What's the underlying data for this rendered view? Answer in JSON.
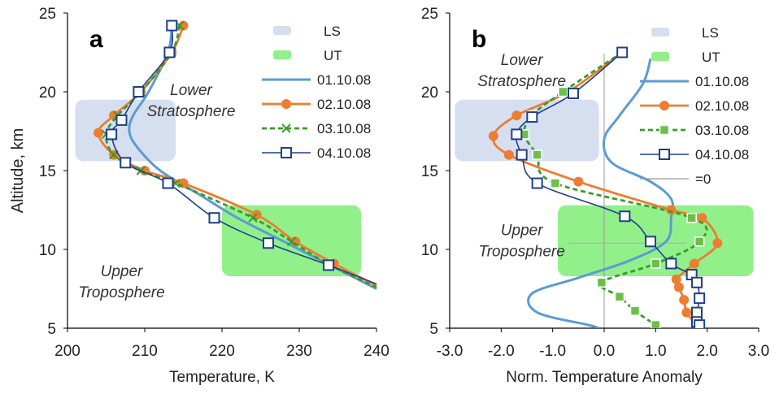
{
  "chart_data": [
    {
      "panel": "a",
      "type": "line",
      "xlabel": "Temperature, K",
      "ylabel": "Altitude, km",
      "xlim": [
        200,
        240
      ],
      "ylim": [
        5,
        25
      ],
      "xticks": [
        "200",
        "210",
        "220",
        "230",
        "240"
      ],
      "yticks": [
        "5",
        "10",
        "15",
        "20",
        "25"
      ],
      "regions": [
        {
          "name": "LS",
          "x": [
            201,
            214
          ],
          "y": [
            15.6,
            19.5
          ],
          "color": "#d6dff0"
        },
        {
          "name": "UT",
          "x": [
            220,
            238
          ],
          "y": [
            8.3,
            12.8
          ],
          "color": "#92f08a"
        }
      ],
      "annotations": [
        {
          "lines": [
            "Lower",
            "Stratosphere"
          ],
          "at": [
            216,
            19.8
          ]
        },
        {
          "lines": [
            "Upper",
            "Troposphere"
          ],
          "at": [
            207,
            8.3
          ]
        }
      ],
      "series": [
        {
          "name": "01.10.08",
          "color": "#5b9bd5",
          "marker": "none",
          "dash": "",
          "points": [
            [
              213.5,
              24
            ],
            [
              213,
              22.5
            ],
            [
              210.5,
              20
            ],
            [
              208.5,
              18.5
            ],
            [
              208,
              17.5
            ],
            [
              209,
              16.5
            ],
            [
              212,
              15
            ],
            [
              217,
              13.5
            ],
            [
              222,
              12
            ],
            [
              228,
              10.5
            ],
            [
              234,
              9
            ],
            [
              240,
              7.5
            ]
          ]
        },
        {
          "name": "02.10.08",
          "color": "#ed7d31",
          "marker": "circle",
          "dash": "",
          "points": [
            [
              215,
              24.2
            ],
            [
              213.5,
              22.5
            ],
            [
              209.5,
              20
            ],
            [
              206,
              18.5
            ],
            [
              204,
              17.4
            ],
            [
              206,
              16
            ],
            [
              210,
              15
            ],
            [
              215,
              14.2
            ],
            [
              224.5,
              12.2
            ],
            [
              229.5,
              10.5
            ],
            [
              234.5,
              9.1
            ],
            [
              240,
              7.7
            ]
          ]
        },
        {
          "name": "03.10.08",
          "color": "#3a9b2d",
          "marker": "x",
          "dash": "6,4",
          "points": [
            [
              214.5,
              24.2
            ],
            [
              213.5,
              22.5
            ],
            [
              209.5,
              20
            ],
            [
              206.5,
              18.5
            ],
            [
              205,
              17.3
            ],
            [
              206,
              16
            ],
            [
              209.5,
              15
            ],
            [
              214,
              14.2
            ],
            [
              224,
              12
            ],
            [
              229,
              10.5
            ],
            [
              234,
              9
            ],
            [
              240,
              7.6
            ]
          ]
        },
        {
          "name": "04.10.08",
          "color": "#1f3f8c",
          "marker": "square",
          "dash": "",
          "points": [
            [
              213.5,
              24.2
            ],
            [
              213.2,
              22.5
            ],
            [
              209.2,
              20
            ],
            [
              207,
              18.2
            ],
            [
              205.7,
              17.3
            ],
            [
              207.5,
              15.5
            ],
            [
              213,
              14.2
            ],
            [
              219,
              12
            ],
            [
              226,
              10.4
            ],
            [
              233.8,
              9
            ],
            [
              240,
              7.8
            ]
          ]
        }
      ],
      "legend": [
        {
          "label": "LS",
          "kind": "region",
          "color": "#d6dff0"
        },
        {
          "label": "UT",
          "kind": "region",
          "color": "#92f08a"
        },
        {
          "label": "01.10.08",
          "kind": "series",
          "series": 0
        },
        {
          "label": "02.10.08",
          "kind": "series",
          "series": 1
        },
        {
          "label": "03.10.08",
          "kind": "series",
          "series": 2
        },
        {
          "label": "04.10.08",
          "kind": "series",
          "series": 3
        }
      ]
    },
    {
      "panel": "b",
      "type": "line",
      "xlabel": "Norm. Temperature Anomaly",
      "ylabel": "",
      "xlim": [
        -3,
        3
      ],
      "ylim": [
        5,
        25
      ],
      "xticks": [
        "-3.0",
        "-2.0",
        "-1.0",
        "0.0",
        "1.0",
        "2.0",
        "3.0"
      ],
      "yticks": [
        "5",
        "10",
        "15",
        "20",
        "25"
      ],
      "regions": [
        {
          "name": "LS",
          "x": [
            -2.9,
            -0.1
          ],
          "y": [
            15.6,
            19.5
          ],
          "color": "#d6dff0"
        },
        {
          "name": "UT",
          "x": [
            -0.9,
            2.9
          ],
          "y": [
            8.3,
            12.8
          ],
          "color": "#92f08a"
        }
      ],
      "annotations": [
        {
          "lines": [
            "Lower",
            "Stratosphere"
          ],
          "at": [
            -1.6,
            21.7
          ]
        },
        {
          "lines": [
            "Upper",
            "Troposphere"
          ],
          "at": [
            -1.6,
            10.9
          ]
        }
      ],
      "series": [
        {
          "name": "01.10.08",
          "color": "#5b9bd5",
          "marker": "none",
          "dash": "",
          "points": [
            [
              0.9,
              22.1
            ],
            [
              0.75,
              20.5
            ],
            [
              0.3,
              18.5
            ],
            [
              0.0,
              17
            ],
            [
              0.15,
              15.5
            ],
            [
              0.9,
              14.3
            ],
            [
              1.3,
              13.2
            ],
            [
              1.3,
              12
            ],
            [
              1.2,
              10.5
            ],
            [
              0.5,
              9.3
            ],
            [
              -0.5,
              8.2
            ],
            [
              -1.4,
              7.2
            ],
            [
              -1.3,
              6
            ],
            [
              -0.3,
              5.2
            ],
            [
              -0.1,
              5
            ]
          ]
        },
        {
          "name": "02.10.08",
          "color": "#ed7d31",
          "marker": "circle",
          "dash": "",
          "points": [
            [
              0.35,
              22.5
            ],
            [
              -0.7,
              20
            ],
            [
              -1.7,
              18.5
            ],
            [
              -2.15,
              17.2
            ],
            [
              -1.85,
              16
            ],
            [
              -0.5,
              14.3
            ],
            [
              1.3,
              12.5
            ],
            [
              1.9,
              12
            ],
            [
              2.2,
              10.4
            ],
            [
              1.75,
              9.1
            ],
            [
              1.4,
              8.1
            ],
            [
              1.45,
              7.6
            ],
            [
              1.55,
              6.8
            ],
            [
              1.6,
              6
            ],
            [
              1.8,
              5.2
            ]
          ]
        },
        {
          "name": "03.10.08",
          "color": "#3a9b2d",
          "marker": "square-green",
          "dash": "6,4",
          "points": [
            [
              0.35,
              22.5
            ],
            [
              -0.8,
              20
            ],
            [
              -1.4,
              18.5
            ],
            [
              -1.55,
              17.3
            ],
            [
              -1.3,
              16
            ],
            [
              -0.95,
              14.2
            ],
            [
              1.7,
              12
            ],
            [
              1.85,
              10.5
            ],
            [
              1.0,
              9.1
            ],
            [
              -0.05,
              7.9
            ],
            [
              0.3,
              7
            ],
            [
              0.6,
              6.1
            ],
            [
              1.0,
              5.2
            ]
          ]
        },
        {
          "name": "04.10.08",
          "color": "#1f3f8c",
          "marker": "square",
          "dash": "",
          "points": [
            [
              0.35,
              22.5
            ],
            [
              -0.6,
              19.9
            ],
            [
              -1.4,
              18.4
            ],
            [
              -1.7,
              17.3
            ],
            [
              -1.6,
              16
            ],
            [
              -1.3,
              14.2
            ],
            [
              0.4,
              12.1
            ],
            [
              0.9,
              10.5
            ],
            [
              1.3,
              9.1
            ],
            [
              1.7,
              8.4
            ],
            [
              1.8,
              7.9
            ],
            [
              1.85,
              6.9
            ],
            [
              1.8,
              6
            ],
            [
              1.8,
              5.4
            ],
            [
              1.85,
              5.2
            ]
          ]
        }
      ],
      "legend": [
        {
          "label": "LS",
          "kind": "region",
          "color": "#d6dff0"
        },
        {
          "label": "UT",
          "kind": "region",
          "color": "#92f08a"
        },
        {
          "label": "01.10.08",
          "kind": "series",
          "series": 0
        },
        {
          "label": "02.10.08",
          "kind": "series",
          "series": 1
        },
        {
          "label": "03.10.08",
          "kind": "series",
          "series": 2
        },
        {
          "label": "04.10.08",
          "kind": "series",
          "series": 3
        },
        {
          "label": "=0",
          "kind": "line",
          "color": "#999999"
        }
      ]
    }
  ]
}
